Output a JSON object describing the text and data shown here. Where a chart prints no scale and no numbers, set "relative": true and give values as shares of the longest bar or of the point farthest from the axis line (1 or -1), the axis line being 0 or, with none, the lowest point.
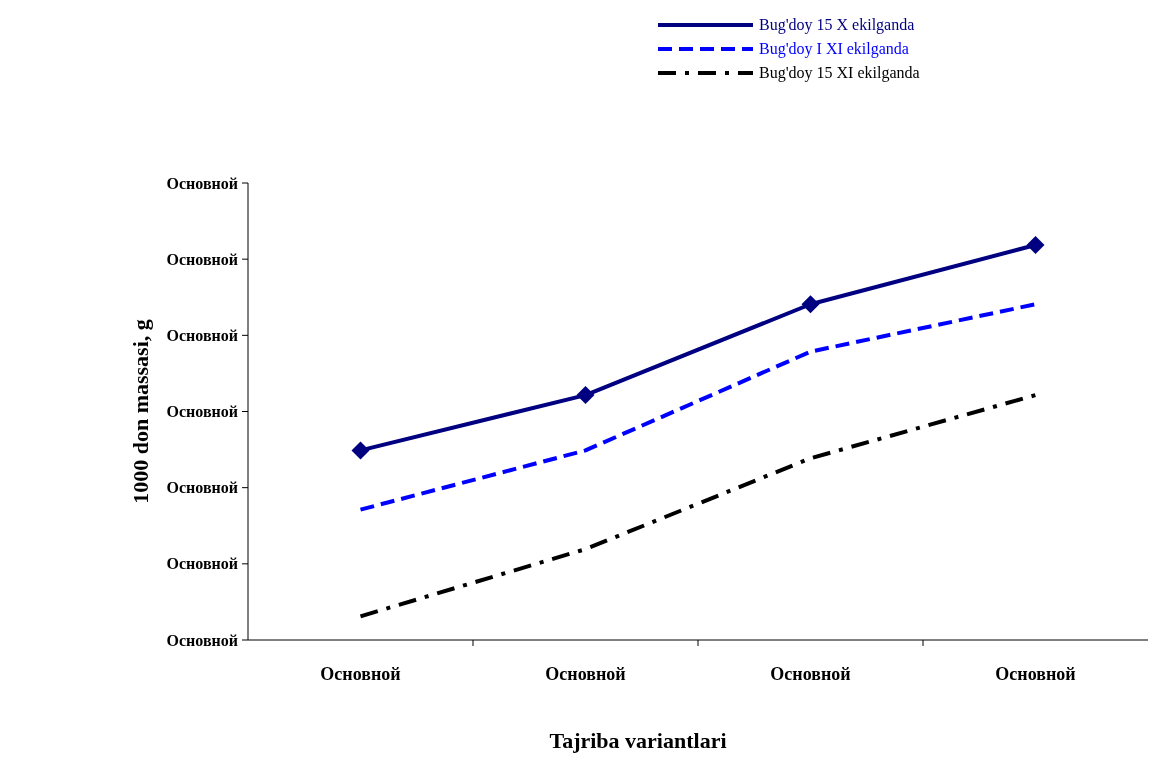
{
  "chart_data": {
    "type": "line",
    "xlabel": "Tajriba variantlari",
    "ylabel": "1000 don massasi, g",
    "categories": [
      "Основной",
      "Основной",
      "Основной",
      "Основной"
    ],
    "relative": true,
    "annotations": [
      "Основной",
      "Основной",
      "Основной",
      "Основной",
      "Основной",
      "Основной",
      "Основной"
    ],
    "legend": "top right",
    "series": [
      {
        "name": "Bug'doy 15 X ekilganda",
        "color": "#000080",
        "values": [
          0.48,
          0.62,
          0.85,
          1
        ],
        "line_style": "solid",
        "marker": "diamond"
      },
      {
        "name": "Bug'doy  I XI ekilganda",
        "color": "#0000ff",
        "values": [
          0.33,
          0.48,
          0.73,
          0.85
        ],
        "line_style": "dashed",
        "marker": "none"
      },
      {
        "name": "Bug'doy 15 XI ekilganda",
        "color": "#000000",
        "values": [
          0.06,
          0.23,
          0.46,
          0.62
        ],
        "line_style": "dashdot",
        "marker": "none"
      }
    ]
  }
}
